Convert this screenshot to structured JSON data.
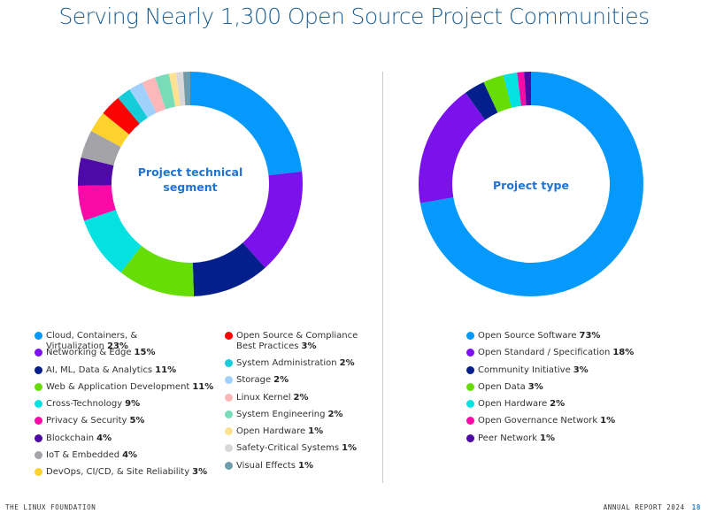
{
  "page": {
    "title": "Serving Nearly 1,300 Open Source Project Communities",
    "footer_org": "THE LINUX FOUNDATION",
    "footer_report": "ANNUAL REPORT 2024",
    "page_number": "18"
  },
  "chart_data": [
    {
      "type": "pie",
      "variant": "donut",
      "title": "Project technical segment",
      "start": "top",
      "direction": "clockwise",
      "legend_placement": "bottom",
      "slices": [
        {
          "label": "Cloud, Containers, & Virtualization",
          "value": 23,
          "display": "23%",
          "color": "#0599fb"
        },
        {
          "label": "Networking & Edge",
          "value": 15,
          "display": "15%",
          "color": "#7b12ec"
        },
        {
          "label": "AI, ML, Data & Analytics",
          "value": 11,
          "display": "11%",
          "color": "#041f8c"
        },
        {
          "label": "Web & Application Development",
          "value": 11,
          "display": "11%",
          "color": "#66dd05"
        },
        {
          "label": "Cross-Technology",
          "value": 9,
          "display": "9%",
          "color": "#04e1e1"
        },
        {
          "label": "Privacy & Security",
          "value": 5,
          "display": "5%",
          "color": "#fb0aa8"
        },
        {
          "label": "Blockchain",
          "value": 4,
          "display": "4%",
          "color": "#4d0aa6"
        },
        {
          "label": "IoT & Embedded",
          "value": 4,
          "display": "4%",
          "color": "#a3a3a8"
        },
        {
          "label": "DevOps, CI/CD, & Site Reliability",
          "value": 3,
          "display": "3%",
          "color": "#fdd22c"
        },
        {
          "label": "Open Source & Compliance Best Practices",
          "value": 3,
          "display": "3%",
          "color": "#fb0303"
        },
        {
          "label": "System Administration",
          "value": 2,
          "display": "2%",
          "color": "#14cdd8"
        },
        {
          "label": "Storage",
          "value": 2,
          "display": "2%",
          "color": "#a0d0fc"
        },
        {
          "label": "Linux Kernel",
          "value": 2,
          "display": "2%",
          "color": "#fcb8b8"
        },
        {
          "label": "System Engineering",
          "value": 2,
          "display": "2%",
          "color": "#78dcb9"
        },
        {
          "label": "Open Hardware",
          "value": 1,
          "display": "1%",
          "color": "#fde292"
        },
        {
          "label": "Safety-Critical Systems",
          "value": 1,
          "display": "1%",
          "color": "#d8d8d8"
        },
        {
          "label": "Visual Effects",
          "value": 1,
          "display": "1%",
          "color": "#6f9dab"
        }
      ]
    },
    {
      "type": "pie",
      "variant": "donut",
      "title": "Project type",
      "start": "top",
      "direction": "clockwise",
      "legend_placement": "bottom",
      "slices": [
        {
          "label": "Open Source Software",
          "value": 73,
          "display": "73%",
          "color": "#0599fb"
        },
        {
          "label": "Open Standard / Specification",
          "value": 18,
          "display": "18%",
          "color": "#7b12ec"
        },
        {
          "label": "Community Initiative",
          "value": 3,
          "display": "3%",
          "color": "#041f8c"
        },
        {
          "label": "Open Data",
          "value": 3,
          "display": "3%",
          "color": "#66dd05"
        },
        {
          "label": "Open Hardware",
          "value": 2,
          "display": "2%",
          "color": "#04e1e1"
        },
        {
          "label": "Open Governance Network",
          "value": 1,
          "display": "1%",
          "color": "#fb0aa8"
        },
        {
          "label": "Peer Network",
          "value": 1,
          "display": "1%",
          "color": "#4d0aa6"
        }
      ]
    }
  ]
}
